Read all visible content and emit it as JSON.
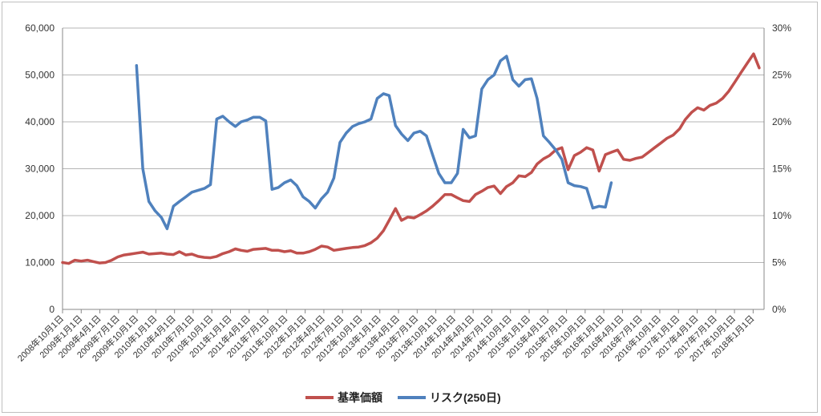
{
  "chart_data": {
    "type": "line",
    "title": "",
    "xlabel": "",
    "ylabel": "",
    "grid": true,
    "legend_position": "bottom",
    "x_dates": [
      "2008-10-01",
      "2008-11-01",
      "2008-12-01",
      "2009-01-01",
      "2009-02-01",
      "2009-03-01",
      "2009-04-01",
      "2009-05-01",
      "2009-06-01",
      "2009-07-01",
      "2009-08-01",
      "2009-09-01",
      "2009-10-01",
      "2009-11-01",
      "2009-12-01",
      "2010-01-01",
      "2010-02-01",
      "2010-03-01",
      "2010-04-01",
      "2010-05-01",
      "2010-06-01",
      "2010-07-01",
      "2010-08-01",
      "2010-09-01",
      "2010-10-01",
      "2010-11-01",
      "2010-12-01",
      "2011-01-01",
      "2011-02-01",
      "2011-03-01",
      "2011-04-01",
      "2011-05-01",
      "2011-06-01",
      "2011-07-01",
      "2011-08-01",
      "2011-09-01",
      "2011-10-01",
      "2011-11-01",
      "2011-12-01",
      "2012-01-01",
      "2012-02-01",
      "2012-03-01",
      "2012-04-01",
      "2012-05-01",
      "2012-06-01",
      "2012-07-01",
      "2012-08-01",
      "2012-09-01",
      "2012-10-01",
      "2012-11-01",
      "2012-12-01",
      "2013-01-01",
      "2013-02-01",
      "2013-03-01",
      "2013-04-01",
      "2013-05-01",
      "2013-06-01",
      "2013-07-01",
      "2013-08-01",
      "2013-09-01",
      "2013-10-01",
      "2013-11-01",
      "2013-12-01",
      "2014-01-01",
      "2014-02-01",
      "2014-03-01",
      "2014-04-01",
      "2014-05-01",
      "2014-06-01",
      "2014-07-01",
      "2014-08-01",
      "2014-09-01",
      "2014-10-01",
      "2014-11-01",
      "2014-12-01",
      "2015-01-01",
      "2015-02-01",
      "2015-03-01",
      "2015-04-01",
      "2015-05-01",
      "2015-06-01",
      "2015-07-01",
      "2015-08-01",
      "2015-09-01",
      "2015-10-01",
      "2015-11-01",
      "2015-12-01",
      "2016-01-01",
      "2016-02-01",
      "2016-03-01",
      "2016-04-01",
      "2016-05-01",
      "2016-06-01",
      "2016-07-01",
      "2016-08-01",
      "2016-09-01",
      "2016-10-01",
      "2016-11-01",
      "2016-12-01",
      "2017-01-01",
      "2017-02-01",
      "2017-03-01",
      "2017-04-01",
      "2017-05-01",
      "2017-06-01",
      "2017-07-01",
      "2017-08-01",
      "2017-09-01",
      "2017-10-01",
      "2017-11-01",
      "2017-12-01",
      "2018-01-01",
      "2018-02-01",
      "2018-03-01"
    ],
    "x_ticks": [
      "2008年10月1日",
      "2009年1月1日",
      "2009年4月1日",
      "2009年7月1日",
      "2009年10月1日",
      "2010年1月1日",
      "2010年4月1日",
      "2010年7月1日",
      "2010年10月1日",
      "2011年1月1日",
      "2011年4月1日",
      "2011年7月1日",
      "2011年10月1日",
      "2012年1月1日",
      "2012年4月1日",
      "2012年7月1日",
      "2012年10月1日",
      "2013年1月1日",
      "2013年4月1日",
      "2013年7月1日",
      "2013年10月1日",
      "2014年1月1日",
      "2014年4月1日",
      "2014年7月1日",
      "2014年10月1日",
      "2015年1月1日",
      "2015年4月1日",
      "2015年7月1日",
      "2015年10月1日",
      "2016年1月1日",
      "2016年4月1日",
      "2016年7月1日",
      "2016年10月1日",
      "2017年1月1日",
      "2017年4月1日",
      "2017年7月1日",
      "2017年10月1日",
      "2018年1月1日"
    ],
    "y_left": {
      "min": 0,
      "max": 60000,
      "ticks": [
        "0",
        "10,000",
        "20,000",
        "30,000",
        "40,000",
        "50,000",
        "60,000"
      ]
    },
    "y_right": {
      "min": 0,
      "max": 30,
      "ticks": [
        "0%",
        "5%",
        "10%",
        "15%",
        "20%",
        "25%",
        "30%"
      ]
    },
    "series": [
      {
        "name": "基準価額",
        "axis": "left",
        "color": "#c0504d",
        "values": [
          10000,
          9800,
          10500,
          10300,
          10500,
          10200,
          9900,
          10000,
          10500,
          11200,
          11600,
          11800,
          12000,
          12200,
          11800,
          11900,
          12000,
          11800,
          11700,
          12300,
          11600,
          11800,
          11300,
          11100,
          11000,
          11300,
          11900,
          12300,
          12900,
          12600,
          12400,
          12800,
          12900,
          13000,
          12600,
          12600,
          12300,
          12500,
          12000,
          12000,
          12300,
          12800,
          13500,
          13300,
          12600,
          12800,
          13000,
          13200,
          13300,
          13600,
          14200,
          15200,
          16800,
          19000,
          21500,
          19000,
          19700,
          19500,
          20200,
          21000,
          22000,
          23200,
          24500,
          24500,
          23800,
          23200,
          23000,
          24500,
          25200,
          26000,
          26300,
          24700,
          26200,
          27000,
          28500,
          28300,
          29200,
          31000,
          32100,
          32800,
          34000,
          34500,
          29800,
          32800,
          33500,
          34500,
          34000,
          29500,
          33000,
          33500,
          34000,
          32000,
          31800,
          32200,
          32500,
          33500,
          34500,
          35500,
          36500,
          37200,
          38500,
          40500,
          42000,
          43000,
          42500,
          43500,
          44000,
          45000,
          46500,
          48500,
          50500,
          52500,
          54500,
          51500
        ],
        "display": "#c0504d"
      },
      {
        "name": "リスク(250日)",
        "axis": "right",
        "color": "#4f81bd",
        "start_index": 12,
        "values": [
          26,
          15,
          11.5,
          10.5,
          9.8,
          8.6,
          11,
          11.5,
          12,
          12.5,
          12.7,
          12.9,
          13.3,
          20.3,
          20.6,
          20,
          19.5,
          20,
          20.2,
          20.5,
          20.5,
          20.1,
          12.8,
          13,
          13.5,
          13.8,
          13.2,
          12,
          11.5,
          10.8,
          11.8,
          12.5,
          14,
          17.8,
          18.8,
          19.5,
          19.8,
          20,
          20.3,
          22.5,
          23,
          22.8,
          19.6,
          18.7,
          18,
          18.8,
          19,
          18.5,
          16.5,
          14.5,
          13.5,
          13.5,
          14.5,
          19.2,
          18.3,
          18.5,
          23.5,
          24.5,
          25,
          26.5,
          27,
          24.5,
          23.8,
          24.5,
          24.6,
          22.5,
          18.5,
          17.8,
          17,
          16,
          13.5,
          13.2,
          13.1,
          12.9,
          10.8,
          11,
          10.9,
          13.5
        ]
      }
    ]
  }
}
